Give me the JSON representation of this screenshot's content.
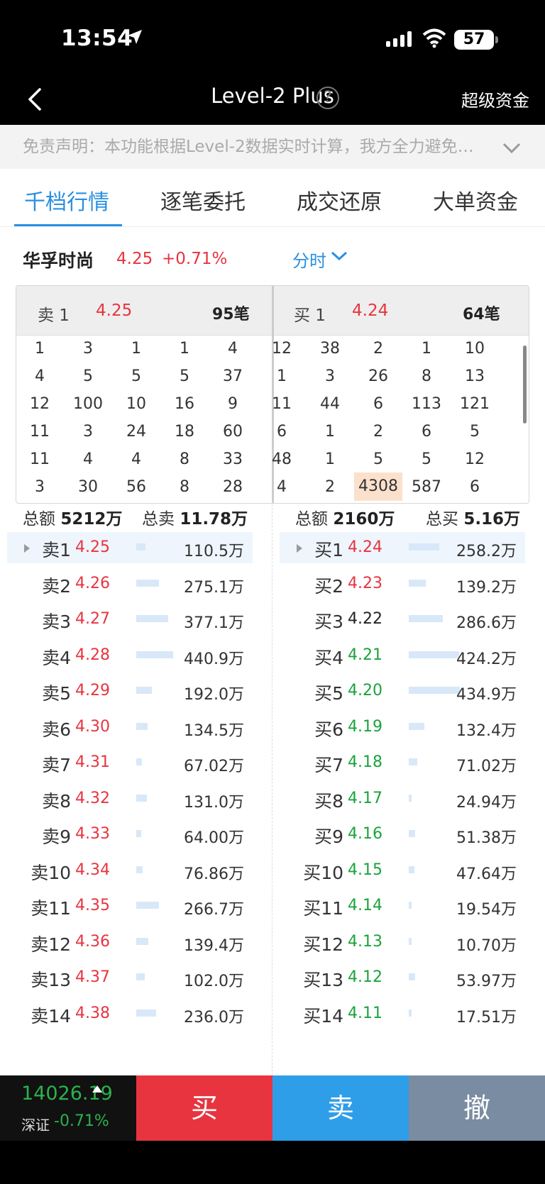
{
  "status": {
    "time": "13:54",
    "battery": "57"
  },
  "nav": {
    "title": "Level-2 Plus",
    "right_link": "超级资金",
    "help": "?"
  },
  "disclaimer": "免责声明：本功能根据Level-2数据实时计算，我方全力避免…",
  "tabs": [
    "千档行情",
    "逐笔委托",
    "成交还原",
    "大单资金"
  ],
  "stock": {
    "name": "华孚时尚",
    "price": "4.25",
    "change": "+0.71%",
    "period": "分时"
  },
  "queue": {
    "sell": {
      "label": "卖 1",
      "price": "4.25",
      "count": "95笔",
      "rows": [
        [
          "1",
          "3",
          "1",
          "1",
          "4"
        ],
        [
          "4",
          "5",
          "5",
          "5",
          "37"
        ],
        [
          "12",
          "100",
          "10",
          "16",
          "9"
        ],
        [
          "11",
          "3",
          "24",
          "18",
          "60"
        ],
        [
          "11",
          "4",
          "4",
          "8",
          "33"
        ],
        [
          "3",
          "30",
          "56",
          "8",
          "28"
        ]
      ]
    },
    "buy": {
      "label": "买 1",
      "price": "4.24",
      "count": "64笔",
      "rows": [
        [
          "12",
          "38",
          "2",
          "1",
          "10"
        ],
        [
          "1",
          "3",
          "26",
          "8",
          "13"
        ],
        [
          "11",
          "44",
          "6",
          "113",
          "121"
        ],
        [
          "6",
          "1",
          "2",
          "6",
          "5"
        ],
        [
          "48",
          "1",
          "5",
          "5",
          "12"
        ],
        [
          "4",
          "2",
          "4308",
          "587",
          "6"
        ]
      ]
    }
  },
  "totals": {
    "sell_amount_label": "总额",
    "sell_amount": "5212万",
    "sell_total_label": "总卖",
    "sell_total": "11.78万",
    "buy_amount_label": "总额",
    "buy_amount": "2160万",
    "buy_total_label": "总买",
    "buy_total": "5.16万"
  },
  "sell_levels": [
    {
      "label": "卖1",
      "price": "4.25",
      "amount": "110.5万",
      "bar": 0.18
    },
    {
      "label": "卖2",
      "price": "4.26",
      "amount": "275.1万",
      "bar": 0.45
    },
    {
      "label": "卖3",
      "price": "4.27",
      "amount": "377.1万",
      "bar": 0.62
    },
    {
      "label": "卖4",
      "price": "4.28",
      "amount": "440.9万",
      "bar": 0.72
    },
    {
      "label": "卖5",
      "price": "4.29",
      "amount": "192.0万",
      "bar": 0.31
    },
    {
      "label": "卖6",
      "price": "4.30",
      "amount": "134.5万",
      "bar": 0.22
    },
    {
      "label": "卖7",
      "price": "4.31",
      "amount": "67.02万",
      "bar": 0.11
    },
    {
      "label": "卖8",
      "price": "4.32",
      "amount": "131.0万",
      "bar": 0.21
    },
    {
      "label": "卖9",
      "price": "4.33",
      "amount": "64.00万",
      "bar": 0.1
    },
    {
      "label": "卖10",
      "price": "4.34",
      "amount": "76.86万",
      "bar": 0.13
    },
    {
      "label": "卖11",
      "price": "4.35",
      "amount": "266.7万",
      "bar": 0.44
    },
    {
      "label": "卖12",
      "price": "4.36",
      "amount": "139.4万",
      "bar": 0.23
    },
    {
      "label": "卖13",
      "price": "4.37",
      "amount": "102.0万",
      "bar": 0.17
    },
    {
      "label": "卖14",
      "price": "4.38",
      "amount": "236.0万",
      "bar": 0.39
    }
  ],
  "buy_levels": [
    {
      "label": "买1",
      "price": "4.24",
      "amount": "258.2万",
      "bar": 0.6,
      "color": "red"
    },
    {
      "label": "买2",
      "price": "4.23",
      "amount": "139.2万",
      "bar": 0.33,
      "color": "red"
    },
    {
      "label": "买3",
      "price": "4.22",
      "amount": "286.6万",
      "bar": 0.67,
      "color": "dark"
    },
    {
      "label": "买4",
      "price": "4.21",
      "amount": "424.2万",
      "bar": 0.98,
      "color": "green"
    },
    {
      "label": "买5",
      "price": "4.20",
      "amount": "434.9万",
      "bar": 1.0,
      "color": "green"
    },
    {
      "label": "买6",
      "price": "4.19",
      "amount": "132.4万",
      "bar": 0.31,
      "color": "green"
    },
    {
      "label": "买7",
      "price": "4.18",
      "amount": "71.02万",
      "bar": 0.17,
      "color": "green"
    },
    {
      "label": "买8",
      "price": "4.17",
      "amount": "24.94万",
      "bar": 0.06,
      "color": "green"
    },
    {
      "label": "买9",
      "price": "4.16",
      "amount": "51.38万",
      "bar": 0.12,
      "color": "green"
    },
    {
      "label": "买10",
      "price": "4.15",
      "amount": "47.64万",
      "bar": 0.11,
      "color": "green"
    },
    {
      "label": "买11",
      "price": "4.14",
      "amount": "19.54万",
      "bar": 0.05,
      "color": "green"
    },
    {
      "label": "买12",
      "price": "4.13",
      "amount": "10.70万",
      "bar": 0.03,
      "color": "green"
    },
    {
      "label": "买13",
      "price": "4.12",
      "amount": "53.97万",
      "bar": 0.12,
      "color": "green"
    },
    {
      "label": "买14",
      "price": "4.11",
      "amount": "17.51万",
      "bar": 0.04,
      "color": "green"
    }
  ],
  "index": {
    "value": "14026.19",
    "name": "深证",
    "change": "-0.71%"
  },
  "actions": {
    "buy": "买",
    "sell": "卖",
    "cancel": "撤"
  },
  "colors": {
    "red": "#e8343f",
    "green": "#1aa33c",
    "blue": "#2a8fe0",
    "cancel": "#7a8ca1"
  }
}
